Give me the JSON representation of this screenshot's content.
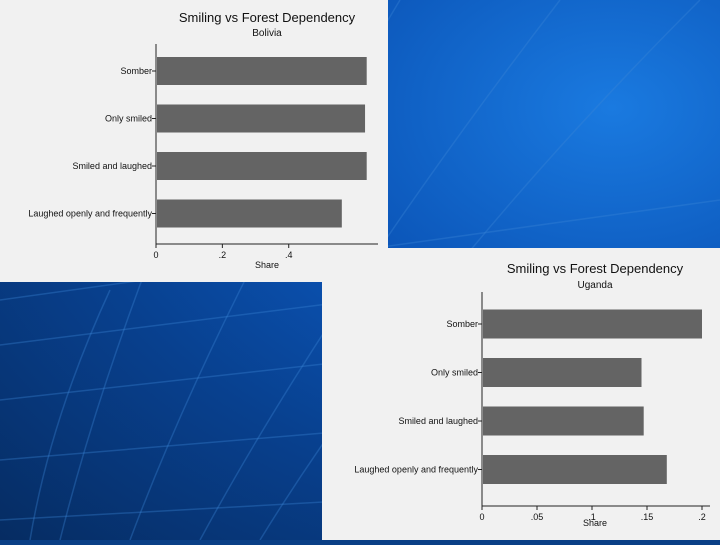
{
  "colors": {
    "bar": "#646464",
    "panel": "#f1f1f1",
    "background": "#0b55b8"
  },
  "chart_data": [
    {
      "type": "bar",
      "orientation": "horizontal",
      "title": "Smiling vs Forest Dependency",
      "subtitle": "Bolivia",
      "categories": [
        "Somber",
        "Only smiled",
        "Smiled and laughed",
        "Laughed openly and frequently"
      ],
      "values": [
        0.635,
        0.63,
        0.635,
        0.56
      ],
      "xlabel": "Share",
      "xticks": [
        0,
        0.2,
        0.4
      ],
      "xtick_labels": [
        "0",
        ".2",
        ".4"
      ],
      "xlim": [
        0,
        0.66
      ]
    },
    {
      "type": "bar",
      "orientation": "horizontal",
      "title": "Smiling vs Forest Dependency",
      "subtitle": "Uganda",
      "categories": [
        "Somber",
        "Only smiled",
        "Smiled and laughed",
        "Laughed openly and frequently"
      ],
      "values": [
        0.2,
        0.145,
        0.147,
        0.168
      ],
      "xlabel": "Share",
      "xticks": [
        0,
        0.05,
        0.1,
        0.15,
        0.2
      ],
      "xtick_labels": [
        "0",
        ".05",
        ".1",
        ".15",
        ".2"
      ],
      "xlim": [
        0,
        0.21
      ]
    }
  ]
}
